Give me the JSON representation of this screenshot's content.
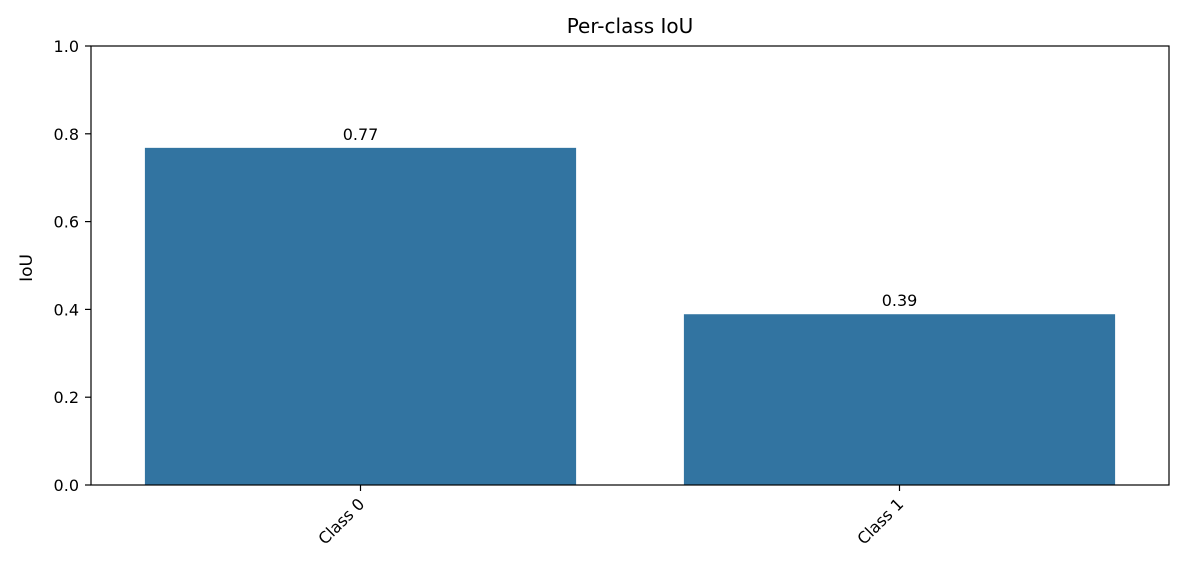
{
  "chart_data": {
    "type": "bar",
    "title": "Per-class IoU",
    "xlabel": "",
    "ylabel": "IoU",
    "categories": [
      "Class 0",
      "Class 1"
    ],
    "values": [
      0.768,
      0.389
    ],
    "data_labels": [
      "0.77",
      "0.39"
    ],
    "ylim": [
      0,
      1.0
    ],
    "yticks": [
      0.0,
      0.2,
      0.4,
      0.6,
      0.8,
      1.0
    ],
    "ytick_labels": [
      "0.0",
      "0.2",
      "0.4",
      "0.6",
      "0.8",
      "1.0"
    ],
    "x_tick_rotation": "45 degrees",
    "grid": false,
    "bar_color": "#3274a1"
  }
}
